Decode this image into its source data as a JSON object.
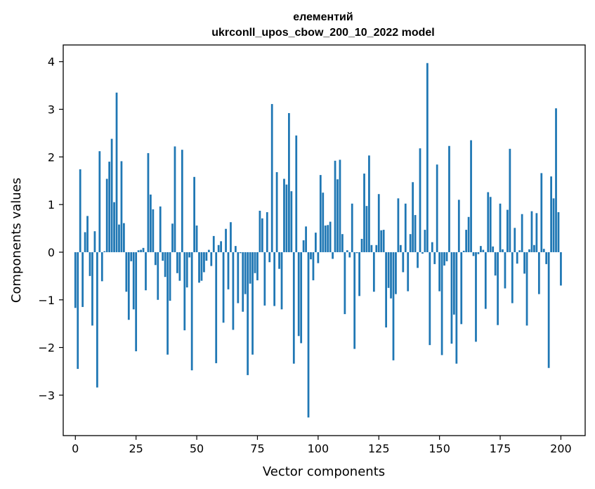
{
  "chart_data": {
    "type": "bar",
    "title_line1": "елементий",
    "title_line2": "ukrconll_upos_cbow_200_10_2022 model",
    "xlabel": "Vector components",
    "ylabel": "Components values",
    "xlim": [
      -5,
      210
    ],
    "ylim": [
      -3.85,
      4.35
    ],
    "xticks": [
      0,
      25,
      50,
      75,
      100,
      125,
      150,
      175,
      200
    ],
    "xtick_labels": [
      "0",
      "25",
      "50",
      "75",
      "100",
      "125",
      "150",
      "175",
      "200"
    ],
    "yticks": [
      -3,
      -2,
      -1,
      0,
      1,
      2,
      3,
      4
    ],
    "ytick_labels": [
      "−3",
      "−2",
      "−1",
      "0",
      "1",
      "2",
      "3",
      "4"
    ],
    "bar_color": "#1f77b4",
    "grid": false,
    "values": [
      -1.17,
      -2.45,
      1.74,
      -1.15,
      0.42,
      0.76,
      -0.5,
      -1.54,
      0.44,
      -2.84,
      2.12,
      -0.61,
      0.02,
      1.54,
      1.9,
      2.38,
      1.05,
      3.35,
      0.58,
      1.91,
      0.61,
      -0.83,
      -1.42,
      -0.19,
      -1.2,
      -2.08,
      0.04,
      0.05,
      0.09,
      -0.8,
      2.08,
      1.21,
      0.9,
      -0.27,
      -1.0,
      0.96,
      -0.18,
      -0.52,
      -2.15,
      -1.02,
      0.6,
      2.22,
      -0.44,
      -0.6,
      2.15,
      -1.64,
      -0.74,
      -0.11,
      -2.48,
      1.58,
      0.56,
      -0.64,
      -0.6,
      -0.42,
      -0.18,
      0.05,
      -0.29,
      0.34,
      -2.33,
      0.15,
      0.23,
      -1.48,
      0.49,
      -0.78,
      0.63,
      -1.63,
      0.13,
      -1.07,
      -0.02,
      -1.25,
      -0.88,
      -2.58,
      -0.66,
      -2.15,
      -0.44,
      -0.59,
      0.87,
      0.71,
      -1.12,
      0.84,
      -0.21,
      3.11,
      -1.13,
      1.68,
      -0.35,
      -1.2,
      1.54,
      1.42,
      2.92,
      1.28,
      -2.34,
      2.45,
      -1.76,
      -1.91,
      0.25,
      0.54,
      -3.47,
      -0.15,
      -0.59,
      0.41,
      -0.23,
      1.62,
      1.25,
      0.56,
      0.57,
      0.64,
      -0.14,
      1.92,
      1.53,
      1.94,
      0.38,
      -1.3,
      0.04,
      -0.11,
      1.02,
      -2.03,
      -0.02,
      -0.92,
      0.28,
      1.65,
      0.97,
      2.03,
      0.15,
      -0.83,
      0.15,
      1.22,
      0.46,
      0.47,
      -1.58,
      -0.75,
      -0.97,
      -2.27,
      -0.88,
      1.13,
      0.15,
      -0.42,
      1.02,
      -0.82,
      0.38,
      1.47,
      0.78,
      -0.33,
      2.18,
      -0.03,
      0.47,
      3.97,
      -1.95,
      0.21,
      -0.25,
      1.84,
      -0.82,
      -2.16,
      -0.28,
      -0.19,
      2.23,
      -1.92,
      -1.31,
      -2.34,
      1.1,
      -1.51,
      0.03,
      0.47,
      0.74,
      2.35,
      -0.08,
      -1.88,
      -0.04,
      0.13,
      0.05,
      -1.19,
      1.26,
      1.16,
      0.12,
      -0.49,
      -1.53,
      1.02,
      0.06,
      -0.76,
      0.89,
      2.17,
      -1.07,
      0.51,
      -0.24,
      0.04,
      0.8,
      -0.45,
      -1.54,
      0.06,
      0.86,
      0.15,
      0.82,
      -0.88,
      1.66,
      0.07,
      -0.25,
      -2.43,
      1.59,
      1.13,
      3.02,
      0.84,
      -0.7
    ]
  }
}
